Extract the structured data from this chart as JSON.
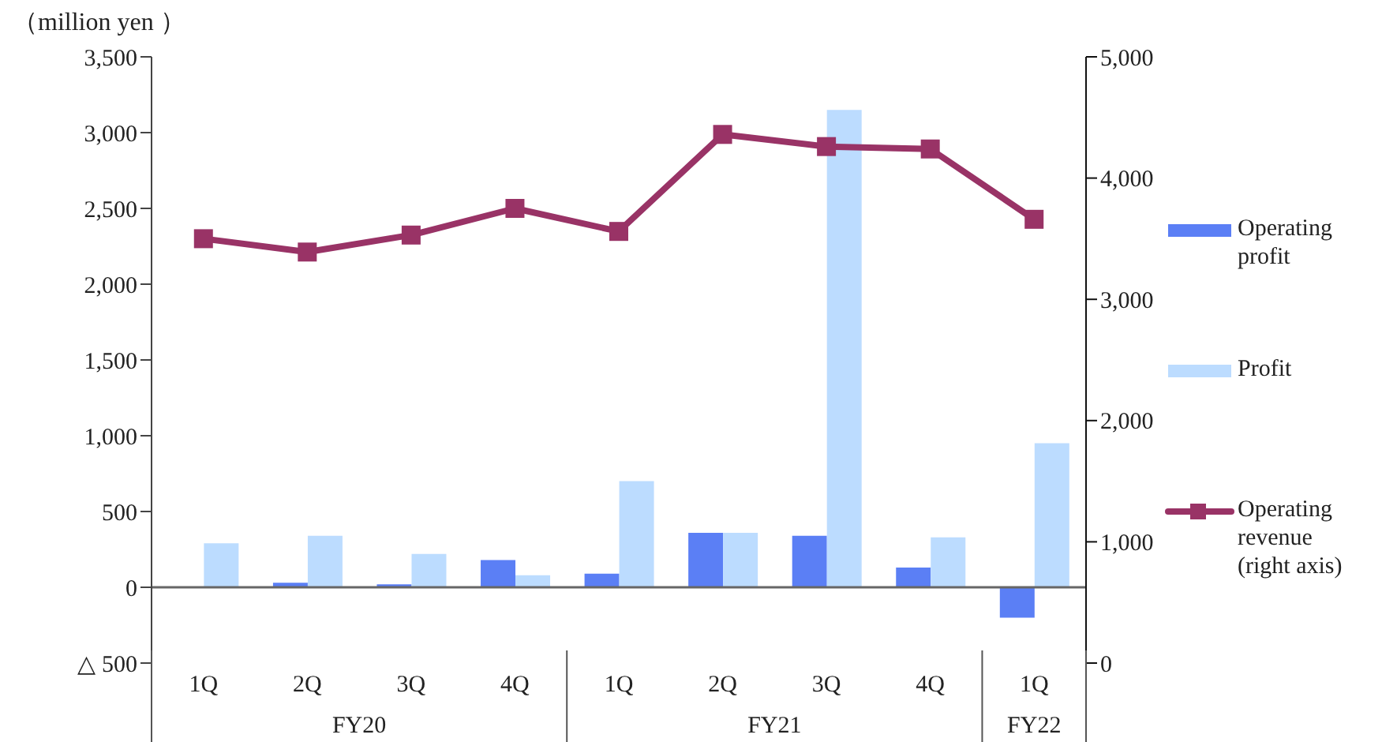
{
  "chart_data": {
    "type": "bar",
    "ylabel": "（million yen ）",
    "categories": [
      "1Q",
      "2Q",
      "3Q",
      "4Q",
      "1Q",
      "2Q",
      "3Q",
      "4Q",
      "1Q"
    ],
    "annotations": [
      "FY20",
      "FY21",
      "FY22"
    ],
    "series": [
      {
        "name": "Operating profit",
        "color": "#5b7ff5",
        "values": [
          0,
          30,
          20,
          180,
          90,
          360,
          340,
          130,
          -200
        ]
      },
      {
        "name": "Profit",
        "color": "#bcdcff",
        "values": [
          290,
          340,
          220,
          80,
          700,
          360,
          3150,
          330,
          950
        ]
      },
      {
        "name": "Operating revenue (right axis)",
        "type": "line",
        "axis": "y2",
        "color": "#993366",
        "values": [
          3500,
          3390,
          3530,
          3750,
          3560,
          4360,
          4260,
          4240,
          3660
        ]
      }
    ],
    "ylim": [
      -500,
      3500
    ],
    "yticks": [
      {
        "value": -500,
        "label": "△ 500"
      },
      0,
      500,
      {
        "value": 1000,
        "label": "1,000"
      },
      {
        "value": 1500,
        "label": "1,500"
      },
      {
        "value": 2000,
        "label": "2,000"
      },
      {
        "value": 2500,
        "label": "2,500"
      },
      {
        "value": 3000,
        "label": "3,000"
      },
      {
        "value": 3500,
        "label": "3,500"
      }
    ],
    "y2lim": [
      0,
      5000
    ],
    "y2ticks": [
      0,
      {
        "value": 1000,
        "label": "1,000"
      },
      {
        "value": 2000,
        "label": "2,000"
      },
      {
        "value": 3000,
        "label": "3,000"
      },
      {
        "value": 4000,
        "label": "4,000"
      },
      {
        "value": 5000,
        "label": "5,000"
      }
    ],
    "legend": "right",
    "marker": "square",
    "line_style": "solid"
  }
}
